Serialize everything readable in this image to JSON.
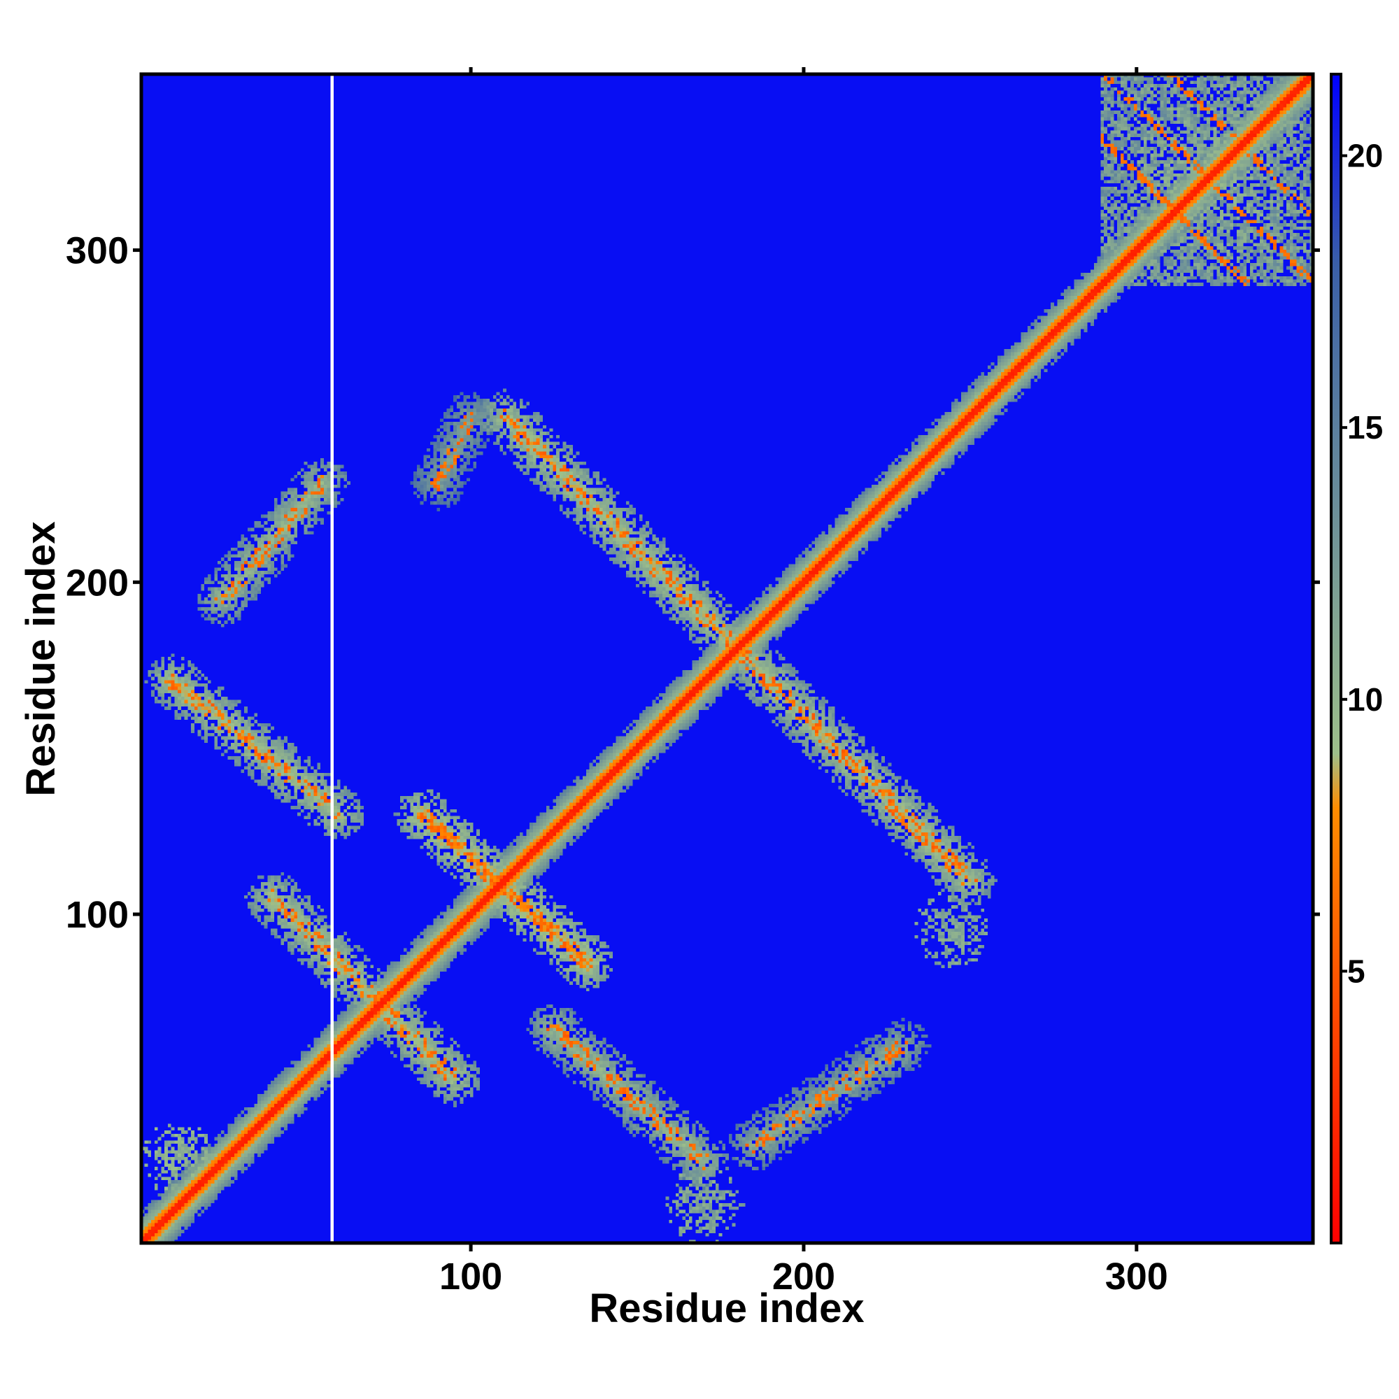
{
  "chart_data": {
    "type": "heatmap",
    "title": "",
    "xlabel": "Residue index",
    "ylabel": "Residue index",
    "xlim": [
      1,
      353
    ],
    "ylim": [
      1,
      353
    ],
    "x_ticks": [
      "100",
      "200",
      "300"
    ],
    "y_ticks": [
      "100",
      "200",
      "300"
    ],
    "colorbar": {
      "range": [
        0,
        21.5
      ],
      "ticks": [
        "5",
        "10",
        "15",
        "20"
      ],
      "colors": [
        "#ff0000",
        "#ff8c00",
        "#9dbf8a",
        "#3a5fa8",
        "#0000ff"
      ],
      "stops": [
        0,
        8,
        9,
        18,
        21.5
      ]
    },
    "background_value": 21,
    "masked_residue_column": 58,
    "features": [
      {
        "type": "diagonal",
        "from": 1,
        "to": 353,
        "core_value": 2,
        "halo_value": 10
      },
      {
        "type": "antiparallel_band",
        "from": [
          110,
          250
        ],
        "to": [
          180,
          180
        ],
        "value": 9
      },
      {
        "type": "antiparallel_band",
        "from": [
          180,
          180
        ],
        "to": [
          250,
          110
        ],
        "value": 9
      },
      {
        "type": "antiparallel_band",
        "from": [
          85,
          130
        ],
        "to": [
          135,
          85
        ],
        "value": 8
      },
      {
        "type": "antiparallel_band",
        "from": [
          40,
          105
        ],
        "to": [
          95,
          50
        ],
        "value": 9
      },
      {
        "type": "antiparallel_band",
        "from": [
          10,
          170
        ],
        "to": [
          60,
          130
        ],
        "value": 9
      },
      {
        "type": "parallel_band",
        "from": [
          25,
          195
        ],
        "to": [
          55,
          230
        ],
        "value": 10
      },
      {
        "type": "antiparallel_band",
        "from": [
          125,
          65
        ],
        "to": [
          170,
          25
        ],
        "value": 10
      },
      {
        "type": "parallel_band",
        "from": [
          185,
          30
        ],
        "to": [
          230,
          60
        ],
        "value": 11
      },
      {
        "type": "patch",
        "center": [
          170,
          12
        ],
        "value": 11
      },
      {
        "type": "patch",
        "center": [
          245,
          95
        ],
        "value": 11
      },
      {
        "type": "patch",
        "center": [
          12,
          26
        ],
        "value": 10
      },
      {
        "type": "parallel_band",
        "from": [
          90,
          230
        ],
        "to": [
          100,
          250
        ],
        "value": 12
      },
      {
        "type": "cluster",
        "center": [
          322,
          322
        ],
        "value": 10
      }
    ]
  }
}
